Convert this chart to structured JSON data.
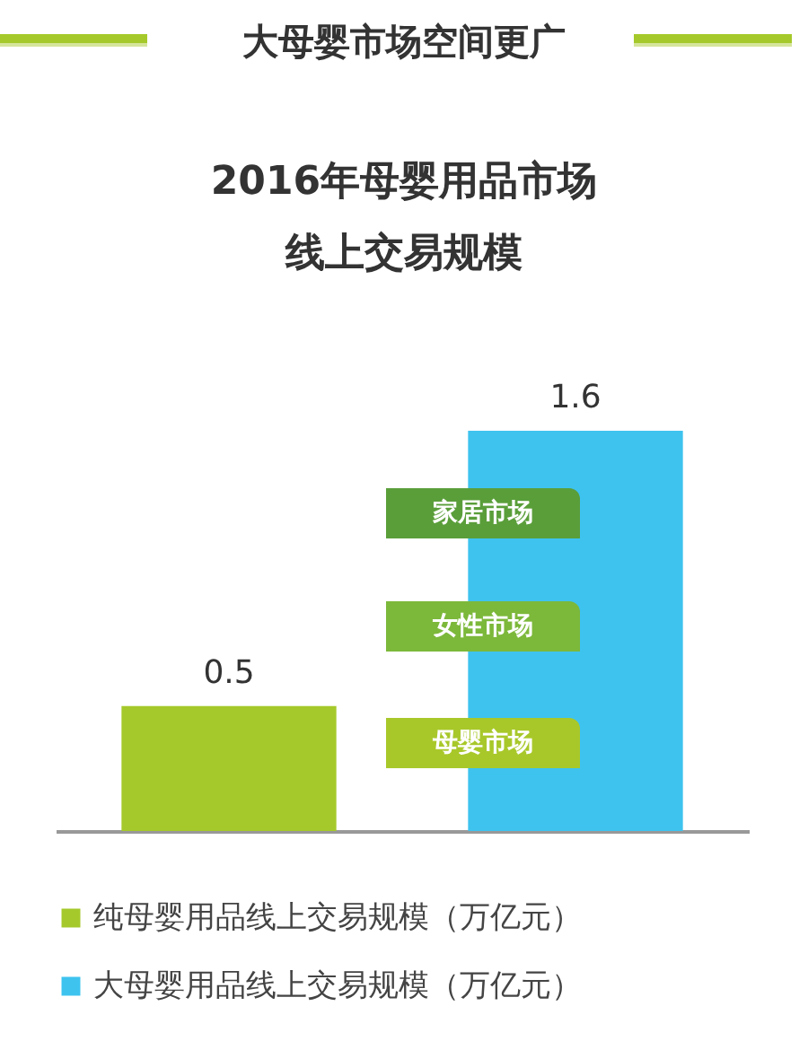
{
  "chart_data": {
    "type": "bar",
    "title": "大母婴市场空间更广",
    "subtitle": "2016年母婴用品市场线上交易规模",
    "categories": [
      null,
      null
    ],
    "series": [
      {
        "name": "纯母婴用品线上交易规模（万亿元）",
        "color": "#a5c92b",
        "values": [
          0.5,
          null
        ]
      },
      {
        "name": "大母婴用品线上交易规模（万亿元）",
        "color": "#3ec3ef",
        "values": [
          null,
          1.6
        ]
      }
    ],
    "stacked": true,
    "data_labels": true,
    "legend": "bottom",
    "annotations": [
      "家居市场",
      "女性市场",
      "母婴市场"
    ]
  }
}
